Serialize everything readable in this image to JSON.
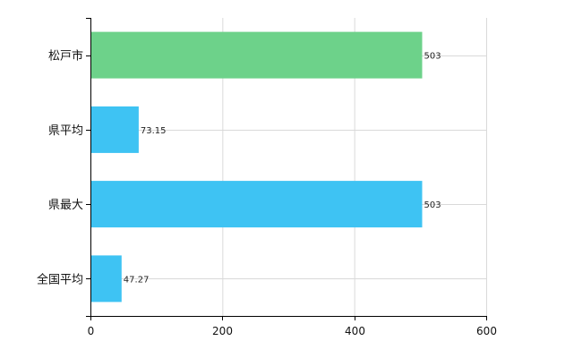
{
  "chart_data": {
    "type": "bar",
    "orientation": "horizontal",
    "categories": [
      "松戸市",
      "県平均",
      "県最大",
      "全国平均"
    ],
    "values": [
      503,
      73.15,
      503,
      47.27
    ],
    "value_labels": [
      "503",
      "73.15",
      "503",
      "47.27"
    ],
    "bar_colors": [
      "#6dd28a",
      "#3ec3f3",
      "#3ec3f3",
      "#3ec3f3"
    ],
    "title": "",
    "xlabel": "",
    "ylabel": "",
    "xlim": [
      0,
      600
    ],
    "x_ticks": [
      0,
      200,
      400,
      600
    ],
    "x_tick_labels": [
      "0",
      "200",
      "400",
      "600"
    ],
    "grid": true,
    "legend": "none"
  }
}
